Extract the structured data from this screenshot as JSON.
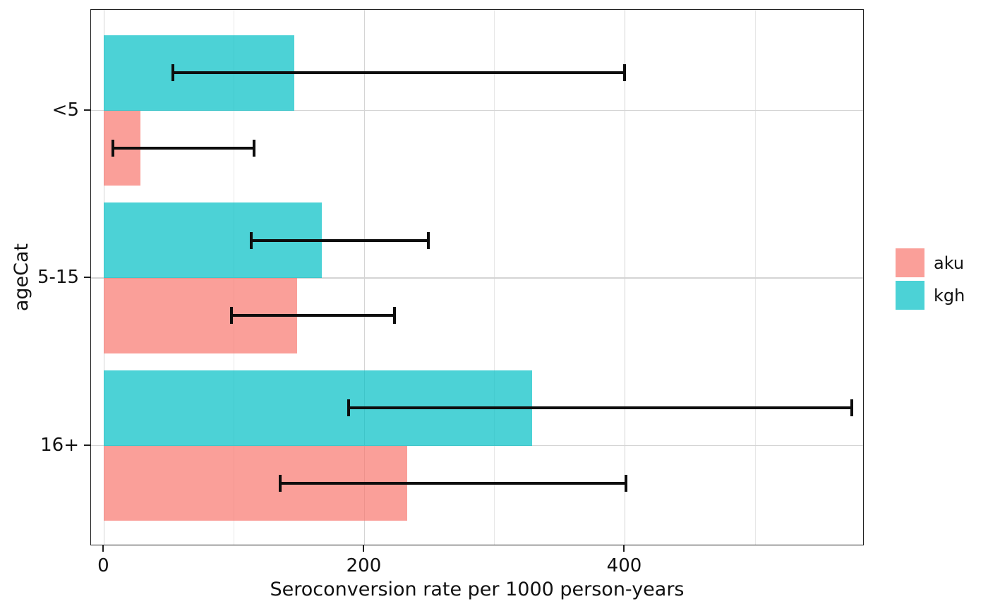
{
  "chart_data": {
    "type": "bar",
    "orientation": "horizontal",
    "title": "",
    "xlabel": "Seroconversion rate per 1000 person-years",
    "ylabel": "ageCat",
    "categories": [
      "<5",
      "5-15",
      "16+"
    ],
    "x_major_ticks": [
      0,
      200,
      400
    ],
    "x_tick_labels": [
      "0",
      "200",
      "400"
    ],
    "x_minor_gridlines": [
      100,
      300,
      500
    ],
    "xlim": [
      -10,
      584
    ],
    "grid": true,
    "legend_position": "right",
    "series": [
      {
        "name": "aku",
        "color": "#F8766D",
        "apparent_color": "#FA9F99",
        "fill_opacity": 0.7,
        "dodge": "bottom",
        "values": [
          28,
          148,
          233
        ],
        "ci_low": [
          7,
          98,
          135
        ],
        "ci_high": [
          115,
          223,
          401
        ]
      },
      {
        "name": "kgh",
        "color": "#00BFC4",
        "apparent_color": "#4ED2D3",
        "fill_opacity": 0.7,
        "dodge": "top",
        "values": [
          146,
          167,
          329
        ],
        "ci_low": [
          53,
          113,
          188
        ],
        "ci_high": [
          400,
          249,
          574
        ]
      }
    ]
  },
  "colors": {
    "panel_border": "#1f1f1f",
    "grid_major": "#d4d4d4",
    "grid_minor": "#e7e7e7",
    "errorbar": "#0d0d0d",
    "text": "#111111",
    "background": "#ffffff"
  }
}
